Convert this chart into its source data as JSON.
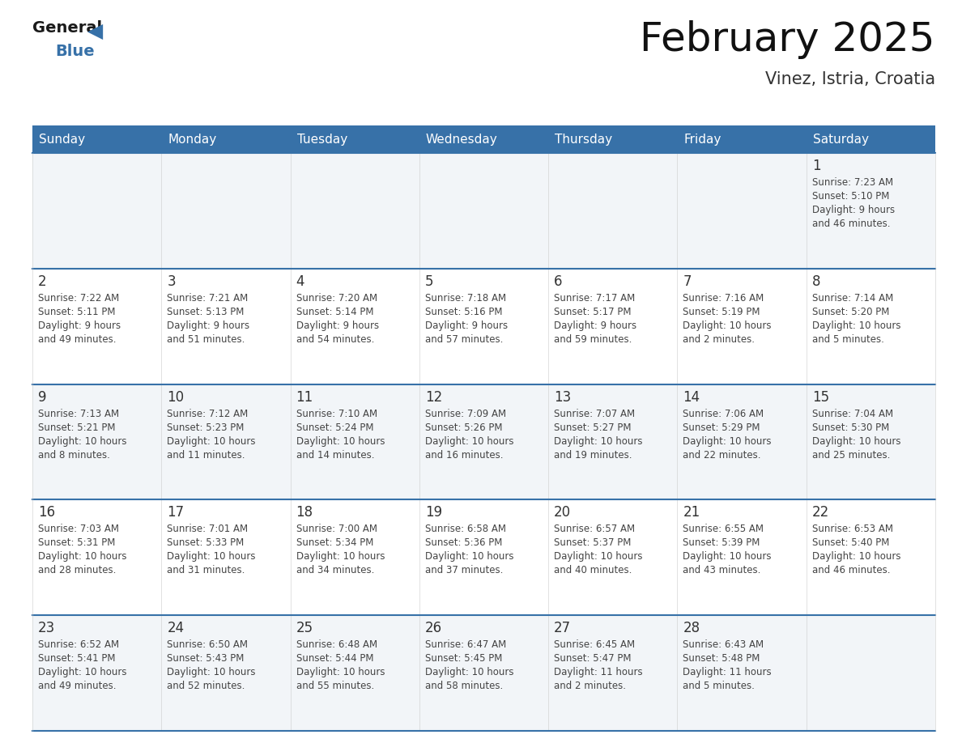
{
  "title": "February 2025",
  "subtitle": "Vinez, Istria, Croatia",
  "header_bg": "#3771a8",
  "header_text": "#ffffff",
  "day_names": [
    "Sunday",
    "Monday",
    "Tuesday",
    "Wednesday",
    "Thursday",
    "Friday",
    "Saturday"
  ],
  "bg_color": "#ffffff",
  "row_bg_odd": "#f2f5f8",
  "row_bg_even": "#ffffff",
  "grid_line_color": "#3771a8",
  "date_color": "#333333",
  "info_color": "#444444",
  "title_color": "#111111",
  "subtitle_color": "#333333",
  "calendar": [
    [
      null,
      null,
      null,
      null,
      null,
      null,
      {
        "day": 1,
        "sunrise": "7:23 AM",
        "sunset": "5:10 PM",
        "daylight": "9 hours and 46 minutes."
      }
    ],
    [
      {
        "day": 2,
        "sunrise": "7:22 AM",
        "sunset": "5:11 PM",
        "daylight": "9 hours and 49 minutes."
      },
      {
        "day": 3,
        "sunrise": "7:21 AM",
        "sunset": "5:13 PM",
        "daylight": "9 hours and 51 minutes."
      },
      {
        "day": 4,
        "sunrise": "7:20 AM",
        "sunset": "5:14 PM",
        "daylight": "9 hours and 54 minutes."
      },
      {
        "day": 5,
        "sunrise": "7:18 AM",
        "sunset": "5:16 PM",
        "daylight": "9 hours and 57 minutes."
      },
      {
        "day": 6,
        "sunrise": "7:17 AM",
        "sunset": "5:17 PM",
        "daylight": "9 hours and 59 minutes."
      },
      {
        "day": 7,
        "sunrise": "7:16 AM",
        "sunset": "5:19 PM",
        "daylight": "10 hours and 2 minutes."
      },
      {
        "day": 8,
        "sunrise": "7:14 AM",
        "sunset": "5:20 PM",
        "daylight": "10 hours and 5 minutes."
      }
    ],
    [
      {
        "day": 9,
        "sunrise": "7:13 AM",
        "sunset": "5:21 PM",
        "daylight": "10 hours and 8 minutes."
      },
      {
        "day": 10,
        "sunrise": "7:12 AM",
        "sunset": "5:23 PM",
        "daylight": "10 hours and 11 minutes."
      },
      {
        "day": 11,
        "sunrise": "7:10 AM",
        "sunset": "5:24 PM",
        "daylight": "10 hours and 14 minutes."
      },
      {
        "day": 12,
        "sunrise": "7:09 AM",
        "sunset": "5:26 PM",
        "daylight": "10 hours and 16 minutes."
      },
      {
        "day": 13,
        "sunrise": "7:07 AM",
        "sunset": "5:27 PM",
        "daylight": "10 hours and 19 minutes."
      },
      {
        "day": 14,
        "sunrise": "7:06 AM",
        "sunset": "5:29 PM",
        "daylight": "10 hours and 22 minutes."
      },
      {
        "day": 15,
        "sunrise": "7:04 AM",
        "sunset": "5:30 PM",
        "daylight": "10 hours and 25 minutes."
      }
    ],
    [
      {
        "day": 16,
        "sunrise": "7:03 AM",
        "sunset": "5:31 PM",
        "daylight": "10 hours and 28 minutes."
      },
      {
        "day": 17,
        "sunrise": "7:01 AM",
        "sunset": "5:33 PM",
        "daylight": "10 hours and 31 minutes."
      },
      {
        "day": 18,
        "sunrise": "7:00 AM",
        "sunset": "5:34 PM",
        "daylight": "10 hours and 34 minutes."
      },
      {
        "day": 19,
        "sunrise": "6:58 AM",
        "sunset": "5:36 PM",
        "daylight": "10 hours and 37 minutes."
      },
      {
        "day": 20,
        "sunrise": "6:57 AM",
        "sunset": "5:37 PM",
        "daylight": "10 hours and 40 minutes."
      },
      {
        "day": 21,
        "sunrise": "6:55 AM",
        "sunset": "5:39 PM",
        "daylight": "10 hours and 43 minutes."
      },
      {
        "day": 22,
        "sunrise": "6:53 AM",
        "sunset": "5:40 PM",
        "daylight": "10 hours and 46 minutes."
      }
    ],
    [
      {
        "day": 23,
        "sunrise": "6:52 AM",
        "sunset": "5:41 PM",
        "daylight": "10 hours and 49 minutes."
      },
      {
        "day": 24,
        "sunrise": "6:50 AM",
        "sunset": "5:43 PM",
        "daylight": "10 hours and 52 minutes."
      },
      {
        "day": 25,
        "sunrise": "6:48 AM",
        "sunset": "5:44 PM",
        "daylight": "10 hours and 55 minutes."
      },
      {
        "day": 26,
        "sunrise": "6:47 AM",
        "sunset": "5:45 PM",
        "daylight": "10 hours and 58 minutes."
      },
      {
        "day": 27,
        "sunrise": "6:45 AM",
        "sunset": "5:47 PM",
        "daylight": "11 hours and 2 minutes."
      },
      {
        "day": 28,
        "sunrise": "6:43 AM",
        "sunset": "5:48 PM",
        "daylight": "11 hours and 5 minutes."
      },
      null
    ]
  ]
}
